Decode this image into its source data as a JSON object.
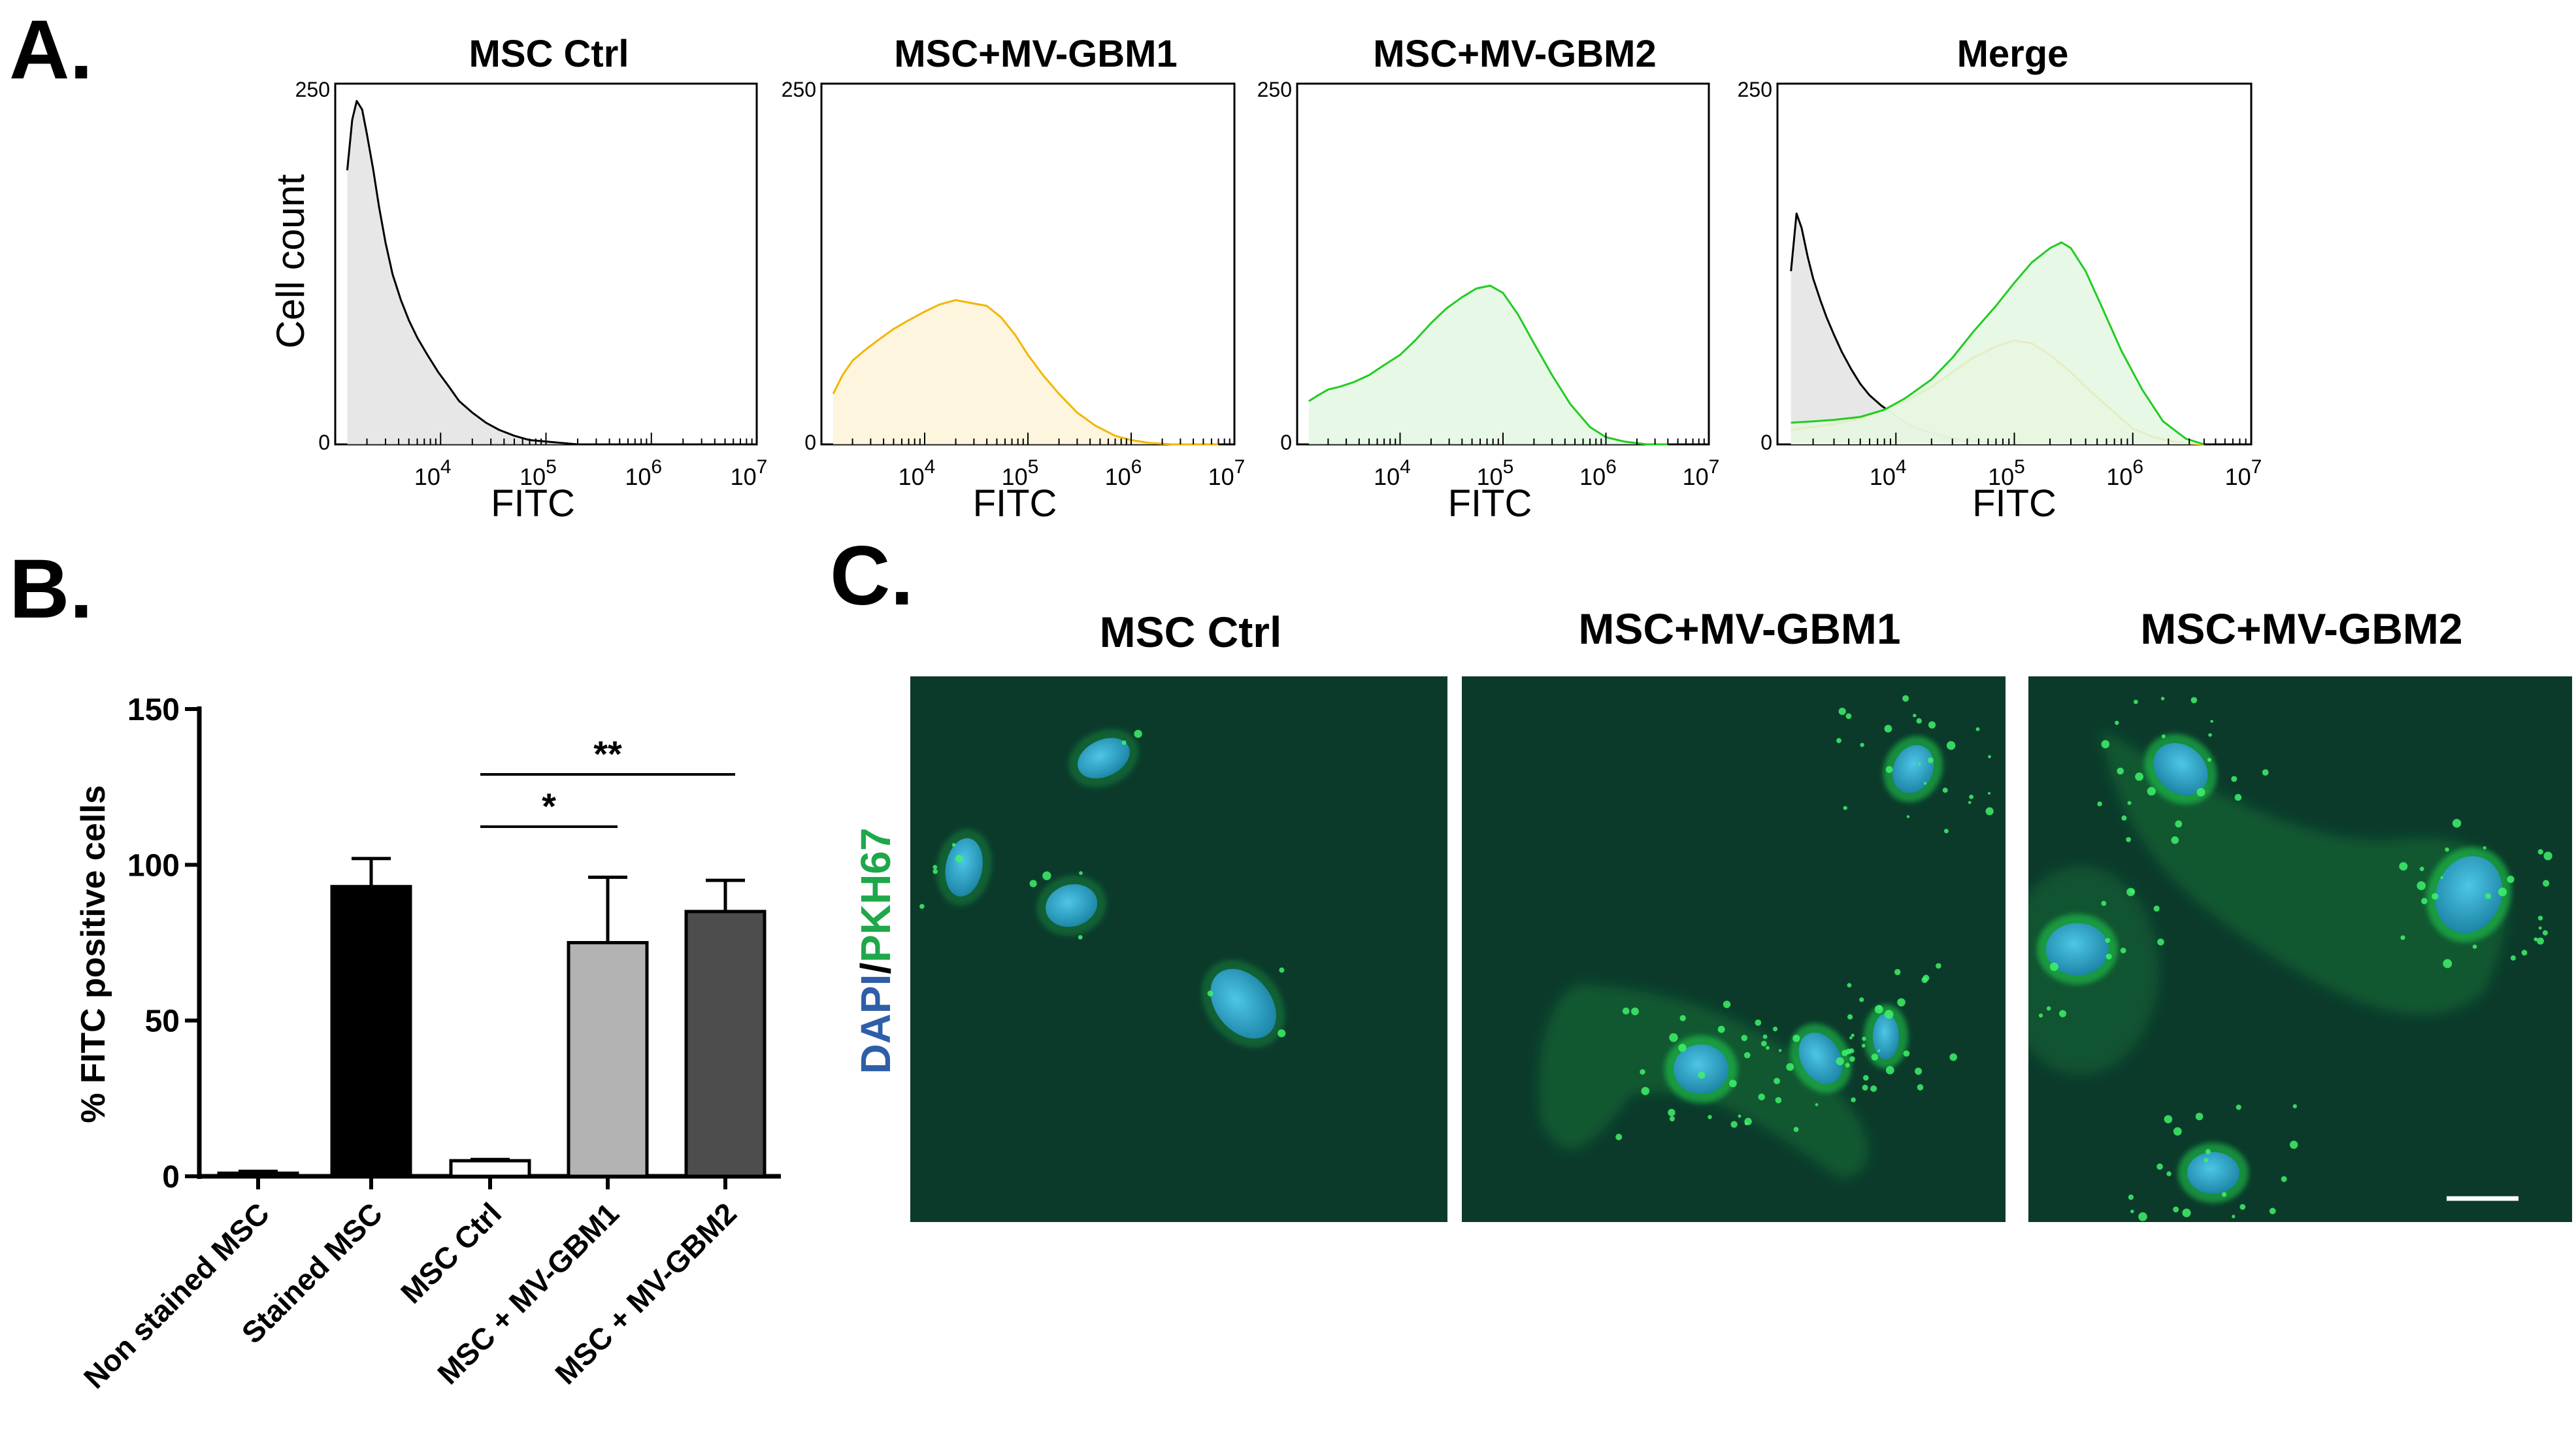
{
  "panel_labels": [
    "A.",
    "B.",
    "C."
  ],
  "chart_data": [
    {
      "type": "area",
      "title": "MSC Ctrl",
      "xlabel": "FITC",
      "ylabel": "Cell count",
      "xscale": "log",
      "xlim": [
        1000,
        10000000
      ],
      "ylim": [
        0,
        250
      ],
      "y_ticks": [
        "0",
        "250"
      ],
      "x_ticks": [
        {
          "value": 10000,
          "base": "10",
          "exp": "4"
        },
        {
          "value": 100000,
          "base": "10",
          "exp": "5"
        },
        {
          "value": 1000000,
          "base": "10",
          "exp": "6"
        },
        {
          "value": 10000000,
          "base": "10",
          "exp": "7"
        }
      ],
      "series": [
        {
          "color": "#000000",
          "fill": "#e3e3e3",
          "x": [
            1300,
            1450,
            1600,
            1800,
            2000,
            2300,
            2600,
            3000,
            3500,
            4200,
            5000,
            6000,
            7500,
            9500,
            12000,
            15000,
            20000,
            27000,
            36000,
            50000,
            70000,
            100000,
            140000,
            200000
          ],
          "y": [
            190,
            225,
            238,
            232,
            215,
            190,
            165,
            140,
            118,
            100,
            86,
            74,
            62,
            50,
            40,
            30,
            22,
            15,
            10,
            6,
            3,
            2,
            1,
            0
          ]
        }
      ]
    },
    {
      "type": "area",
      "title": "MSC+MV-GBM1",
      "xlabel": "FITC",
      "ylabel": "",
      "xscale": "log",
      "xlim": [
        1000,
        10000000
      ],
      "ylim": [
        0,
        250
      ],
      "y_ticks": [
        "0",
        "250"
      ],
      "x_ticks": [
        {
          "value": 10000,
          "base": "10",
          "exp": "4"
        },
        {
          "value": 100000,
          "base": "10",
          "exp": "5"
        },
        {
          "value": 1000000,
          "base": "10",
          "exp": "6"
        },
        {
          "value": 10000000,
          "base": "10",
          "exp": "7"
        }
      ],
      "series": [
        {
          "color": "#f2b600",
          "fill": "#fdf3d8",
          "x": [
            1300,
            1600,
            2000,
            2600,
            3500,
            5000,
            7000,
            10000,
            14000,
            20000,
            28000,
            40000,
            55000,
            75000,
            100000,
            140000,
            200000,
            300000,
            450000,
            700000,
            1000000,
            1500000,
            2500000,
            4000000,
            7000000
          ],
          "y": [
            35,
            48,
            58,
            65,
            72,
            80,
            86,
            92,
            97,
            100,
            98,
            96,
            88,
            76,
            62,
            48,
            35,
            22,
            13,
            6,
            3,
            1,
            0,
            0,
            0
          ]
        }
      ]
    },
    {
      "type": "area",
      "title": "MSC+MV-GBM2",
      "xlabel": "FITC",
      "ylabel": "",
      "xscale": "log",
      "xlim": [
        1000,
        10000000
      ],
      "ylim": [
        0,
        250
      ],
      "y_ticks": [
        "0",
        "250"
      ],
      "x_ticks": [
        {
          "value": 10000,
          "base": "10",
          "exp": "4"
        },
        {
          "value": 100000,
          "base": "10",
          "exp": "5"
        },
        {
          "value": 1000000,
          "base": "10",
          "exp": "6"
        },
        {
          "value": 10000000,
          "base": "10",
          "exp": "7"
        }
      ],
      "series": [
        {
          "color": "#22cc22",
          "fill": "#e3f7e3",
          "x": [
            1300,
            1600,
            2000,
            2600,
            3500,
            5000,
            7000,
            10000,
            14000,
            20000,
            28000,
            40000,
            55000,
            75000,
            100000,
            140000,
            200000,
            300000,
            450000,
            700000,
            1000000,
            1500000,
            2500000,
            4000000
          ],
          "y": [
            30,
            34,
            38,
            40,
            43,
            48,
            55,
            62,
            72,
            84,
            94,
            102,
            108,
            110,
            105,
            90,
            70,
            48,
            28,
            12,
            5,
            2,
            0,
            0
          ]
        }
      ]
    },
    {
      "type": "area",
      "title": "Merge",
      "xlabel": "FITC",
      "ylabel": "",
      "xscale": "log",
      "xlim": [
        1000,
        10000000
      ],
      "ylim": [
        0,
        250
      ],
      "y_ticks": [
        "0",
        "250"
      ],
      "x_ticks": [
        {
          "value": 10000,
          "base": "10",
          "exp": "4"
        },
        {
          "value": 100000,
          "base": "10",
          "exp": "5"
        },
        {
          "value": 1000000,
          "base": "10",
          "exp": "6"
        },
        {
          "value": 10000000,
          "base": "10",
          "exp": "7"
        }
      ],
      "series": [
        {
          "color": "#000000",
          "fill": "#e3e3e3",
          "x": [
            1300,
            1450,
            1600,
            1800,
            2000,
            2300,
            2600,
            3000,
            3500,
            4200,
            5000,
            6000,
            7500,
            9500,
            12000,
            15000,
            20000,
            27000,
            36000,
            50000,
            70000,
            100000,
            140000,
            200000
          ],
          "y": [
            120,
            160,
            150,
            130,
            115,
            100,
            88,
            76,
            64,
            52,
            42,
            34,
            27,
            21,
            15,
            11,
            8,
            5,
            3,
            2,
            1,
            1,
            0,
            0
          ]
        },
        {
          "color": "#f2b600",
          "fill": "#fdf3d8",
          "x": [
            1300,
            2000,
            3000,
            5000,
            8000,
            12000,
            20000,
            30000,
            45000,
            70000,
            100000,
            140000,
            200000,
            300000,
            450000,
            700000,
            1000000,
            1500000,
            2500000,
            4000000
          ],
          "y": [
            10,
            12,
            14,
            18,
            24,
            30,
            40,
            50,
            60,
            68,
            72,
            70,
            62,
            50,
            36,
            22,
            11,
            5,
            1,
            0
          ]
        },
        {
          "color": "#22cc22",
          "fill": "#e3f7e3",
          "x": [
            1300,
            2000,
            3000,
            5000,
            8000,
            12000,
            20000,
            30000,
            45000,
            70000,
            100000,
            140000,
            200000,
            250000,
            300000,
            400000,
            550000,
            800000,
            1200000,
            1800000,
            2800000,
            4000000
          ],
          "y": [
            15,
            16,
            17,
            19,
            24,
            32,
            45,
            60,
            78,
            96,
            112,
            126,
            136,
            140,
            136,
            120,
            95,
            65,
            38,
            16,
            4,
            0
          ]
        }
      ]
    },
    {
      "type": "bar",
      "title": "",
      "xlabel": "",
      "ylabel": "% FITC positive cells",
      "ylim": [
        0,
        150
      ],
      "y_ticks": [
        "0",
        "50",
        "100",
        "150"
      ],
      "categories": [
        "Non stained MSC",
        "Stained MSC",
        "MSC Ctrl",
        "MSC + MV-GBM1",
        "MSC + MV-GBM2"
      ],
      "values": [
        1,
        93,
        5,
        75,
        85
      ],
      "errors": [
        0.6,
        9,
        0.4,
        21,
        10
      ],
      "bar_colors": [
        "#ffffff",
        "#000000",
        "#ffffff",
        "#b3b3b3",
        "#4d4d4d"
      ],
      "significance": [
        {
          "from": 2,
          "to": 3,
          "label": "*"
        },
        {
          "from": 2,
          "to": 4,
          "label": "**"
        }
      ]
    }
  ],
  "micrographs": {
    "titles": [
      "MSC Ctrl",
      "MSC+MV-GBM1",
      "MSC+MV-GBM2"
    ],
    "stain_label_dapi": "DAPI",
    "stain_label_sep": "/",
    "stain_label_pkh": "PKH67",
    "colors": {
      "background": "#0b3a2b",
      "nucleus": "#2aa6c6",
      "membrane": "#22d44a",
      "dapi_text": "#2f5ea8",
      "pkh_text": "#1fa84a"
    }
  }
}
